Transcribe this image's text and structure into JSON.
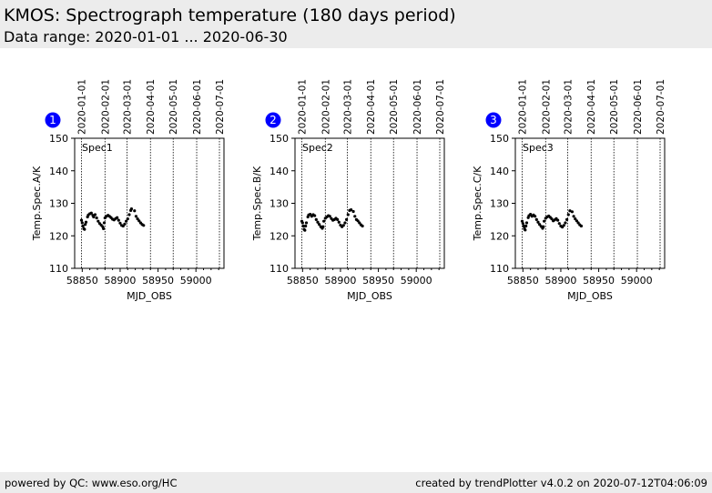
{
  "header": {
    "title": "KMOS: Spectrograph temperature (180 days period)",
    "range": "Data range: 2020-01-01 ... 2020-06-30"
  },
  "footer": {
    "left": "powered by QC: www.eso.org/HC",
    "right": "created by trendPlotter v4.0.2 on 2020-07-12T04:06:09"
  },
  "colors": {
    "badge": "#0000ff",
    "marker": "#000000",
    "header_bg": "#ececec"
  },
  "chart_data": [
    {
      "type": "scatter",
      "badge": "1",
      "label": "Spec1",
      "xlabel": "MJD_OBS",
      "ylabel": "Temp.Spec.A/K",
      "xlim": [
        58840,
        59037
      ],
      "ylim": [
        110,
        150
      ],
      "xticks": [
        58850,
        58900,
        58950,
        59000
      ],
      "yticks": [
        110,
        120,
        130,
        140,
        150
      ],
      "date_lines": [
        {
          "label": "2020-01-01",
          "mjd": 58849
        },
        {
          "label": "2020-02-01",
          "mjd": 58880
        },
        {
          "label": "2020-03-01",
          "mjd": 58909
        },
        {
          "label": "2020-04-01",
          "mjd": 58940
        },
        {
          "label": "2020-05-01",
          "mjd": 58970
        },
        {
          "label": "2020-06-01",
          "mjd": 59001
        },
        {
          "label": "2020-07-01",
          "mjd": 59031
        }
      ],
      "points": [
        [
          58849,
          124.8
        ],
        [
          58850,
          124
        ],
        [
          58851,
          123
        ],
        [
          58852,
          122.2
        ],
        [
          58853,
          122
        ],
        [
          58854,
          123.5
        ],
        [
          58855,
          124.2
        ],
        [
          58857,
          125.8
        ],
        [
          58858,
          126.4
        ],
        [
          58860,
          126.8
        ],
        [
          58862,
          127
        ],
        [
          58864,
          126.3
        ],
        [
          58865,
          125.8
        ],
        [
          58867,
          126.5
        ],
        [
          58869,
          125.5
        ],
        [
          58871,
          124.5
        ],
        [
          58873,
          123.8
        ],
        [
          58875,
          123.3
        ],
        [
          58877,
          122.8
        ],
        [
          58878,
          122.2
        ],
        [
          58879,
          124
        ],
        [
          58880,
          125.5
        ],
        [
          58882,
          126
        ],
        [
          58884,
          126.3
        ],
        [
          58886,
          126
        ],
        [
          58888,
          125.6
        ],
        [
          58890,
          125.1
        ],
        [
          58892,
          124.9
        ],
        [
          58894,
          125.3
        ],
        [
          58896,
          125.6
        ],
        [
          58898,
          124.8
        ],
        [
          58900,
          123.9
        ],
        [
          58902,
          123.2
        ],
        [
          58904,
          123
        ],
        [
          58906,
          123.6
        ],
        [
          58908,
          124.5
        ],
        [
          58910,
          125.2
        ],
        [
          58912,
          126.5
        ],
        [
          58914,
          127.8
        ],
        [
          58915,
          128.3
        ],
        [
          58919,
          127.7
        ],
        [
          58921,
          126
        ],
        [
          58923,
          125.2
        ],
        [
          58925,
          124.6
        ],
        [
          58927,
          124
        ],
        [
          58929,
          123.5
        ],
        [
          58931,
          123.2
        ]
      ]
    },
    {
      "type": "scatter",
      "badge": "2",
      "label": "Spec2",
      "xlabel": "MJD_OBS",
      "ylabel": "Temp.Spec.B/K",
      "xlim": [
        58840,
        59037
      ],
      "ylim": [
        110,
        150
      ],
      "xticks": [
        58850,
        58900,
        58950,
        59000
      ],
      "yticks": [
        110,
        120,
        130,
        140,
        150
      ],
      "date_lines": [
        {
          "label": "2020-01-01",
          "mjd": 58849
        },
        {
          "label": "2020-02-01",
          "mjd": 58880
        },
        {
          "label": "2020-03-01",
          "mjd": 58909
        },
        {
          "label": "2020-04-01",
          "mjd": 58940
        },
        {
          "label": "2020-05-01",
          "mjd": 58970
        },
        {
          "label": "2020-06-01",
          "mjd": 59001
        },
        {
          "label": "2020-07-01",
          "mjd": 59031
        }
      ],
      "points": [
        [
          58849,
          124.5
        ],
        [
          58850,
          124
        ],
        [
          58851,
          123
        ],
        [
          58852,
          122
        ],
        [
          58853,
          121.7
        ],
        [
          58854,
          123
        ],
        [
          58855,
          124
        ],
        [
          58857,
          125.8
        ],
        [
          58858,
          126.4
        ],
        [
          58860,
          126.6
        ],
        [
          58862,
          126
        ],
        [
          58864,
          126.5
        ],
        [
          58866,
          126.2
        ],
        [
          58868,
          125
        ],
        [
          58870,
          124.2
        ],
        [
          58872,
          123.5
        ],
        [
          58874,
          122.8
        ],
        [
          58876,
          122.3
        ],
        [
          58877,
          122.8
        ],
        [
          58878,
          124.5
        ],
        [
          58880,
          125.4
        ],
        [
          58882,
          125.8
        ],
        [
          58884,
          126.2
        ],
        [
          58886,
          126
        ],
        [
          58888,
          125.3
        ],
        [
          58890,
          124.8
        ],
        [
          58892,
          125
        ],
        [
          58894,
          125.4
        ],
        [
          58896,
          125
        ],
        [
          58898,
          124.2
        ],
        [
          58900,
          123.3
        ],
        [
          58902,
          122.8
        ],
        [
          58904,
          123.2
        ],
        [
          58906,
          124
        ],
        [
          58908,
          125
        ],
        [
          58910,
          126.5
        ],
        [
          58912,
          127.8
        ],
        [
          58914,
          128
        ],
        [
          58917,
          127.5
        ],
        [
          58919,
          126
        ],
        [
          58921,
          125
        ],
        [
          58923,
          124.6
        ],
        [
          58925,
          124
        ],
        [
          58927,
          123.4
        ],
        [
          58929,
          123
        ]
      ]
    },
    {
      "type": "scatter",
      "badge": "3",
      "label": "Spec3",
      "xlabel": "MJD_OBS",
      "ylabel": "Temp.Spec.C/K",
      "xlim": [
        58840,
        59037
      ],
      "ylim": [
        110,
        150
      ],
      "xticks": [
        58850,
        58900,
        58950,
        59000
      ],
      "yticks": [
        110,
        120,
        130,
        140,
        150
      ],
      "date_lines": [
        {
          "label": "2020-01-01",
          "mjd": 58849
        },
        {
          "label": "2020-02-01",
          "mjd": 58880
        },
        {
          "label": "2020-03-01",
          "mjd": 58909
        },
        {
          "label": "2020-04-01",
          "mjd": 58940
        },
        {
          "label": "2020-05-01",
          "mjd": 58970
        },
        {
          "label": "2020-06-01",
          "mjd": 59001
        },
        {
          "label": "2020-07-01",
          "mjd": 59031
        }
      ],
      "points": [
        [
          58849,
          124.5
        ],
        [
          58850,
          123.8
        ],
        [
          58851,
          123
        ],
        [
          58852,
          122.2
        ],
        [
          58853,
          121.8
        ],
        [
          58854,
          123
        ],
        [
          58855,
          124
        ],
        [
          58857,
          125.6
        ],
        [
          58858,
          126.2
        ],
        [
          58860,
          126.6
        ],
        [
          58862,
          126
        ],
        [
          58864,
          126.4
        ],
        [
          58866,
          126
        ],
        [
          58868,
          125
        ],
        [
          58870,
          124.2
        ],
        [
          58872,
          123.5
        ],
        [
          58874,
          122.9
        ],
        [
          58876,
          122.3
        ],
        [
          58877,
          122.8
        ],
        [
          58878,
          124.5
        ],
        [
          58880,
          125.4
        ],
        [
          58882,
          125.8
        ],
        [
          58884,
          126.1
        ],
        [
          58886,
          125.7
        ],
        [
          58888,
          125.2
        ],
        [
          58890,
          124.6
        ],
        [
          58892,
          124.9
        ],
        [
          58894,
          125.3
        ],
        [
          58896,
          124.8
        ],
        [
          58898,
          123.8
        ],
        [
          58900,
          123
        ],
        [
          58902,
          122.7
        ],
        [
          58904,
          123.2
        ],
        [
          58906,
          124
        ],
        [
          58908,
          125
        ],
        [
          58910,
          126.5
        ],
        [
          58912,
          127.7
        ],
        [
          58915,
          127.4
        ],
        [
          58917,
          126
        ],
        [
          58919,
          125.2
        ],
        [
          58921,
          124.6
        ],
        [
          58923,
          124
        ],
        [
          58925,
          123.4
        ],
        [
          58927,
          123
        ]
      ]
    }
  ]
}
